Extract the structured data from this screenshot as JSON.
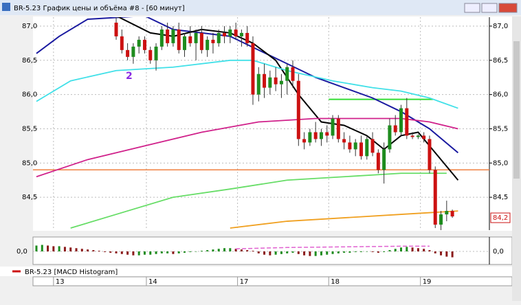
{
  "chart_data": {
    "type": "candlestick",
    "window_title": "BR-5.23 График цены и объёма #8 - [60 минут]",
    "xlim": [
      -14.6,
      65.5
    ],
    "ylim": [
      84.02,
      87.13
    ],
    "yticks": [
      {
        "value": 87.0,
        "label": "87,0"
      },
      {
        "value": 86.5,
        "label": "86,5"
      },
      {
        "value": 86.0,
        "label": "86,0"
      },
      {
        "value": 85.5,
        "label": "85,5"
      },
      {
        "value": 85.0,
        "label": "85,0"
      },
      {
        "value": 84.5,
        "label": "84,5"
      }
    ],
    "grid": true,
    "day_ticks": [
      {
        "value": -11,
        "label": "13"
      },
      {
        "value": 5.3,
        "label": "14"
      },
      {
        "value": 21.3,
        "label": "17"
      },
      {
        "value": 37.3,
        "label": "18"
      },
      {
        "value": 53.4,
        "label": "19"
      }
    ],
    "ohlc": [
      [
        87.05,
        87.15,
        86.8,
        86.85
      ],
      [
        86.85,
        86.95,
        86.6,
        86.65
      ],
      [
        86.65,
        86.75,
        86.5,
        86.55
      ],
      [
        86.55,
        86.75,
        86.45,
        86.7
      ],
      [
        86.7,
        86.85,
        86.6,
        86.8
      ],
      [
        86.8,
        86.85,
        86.6,
        86.65
      ],
      [
        86.65,
        86.7,
        86.45,
        86.5
      ],
      [
        86.5,
        86.75,
        86.35,
        86.7
      ],
      [
        86.7,
        87.0,
        86.65,
        86.95
      ],
      [
        86.95,
        87.05,
        86.7,
        86.75
      ],
      [
        86.75,
        87.0,
        86.7,
        86.95
      ],
      [
        86.95,
        87.05,
        86.6,
        86.65
      ],
      [
        86.65,
        86.9,
        86.55,
        86.85
      ],
      [
        86.85,
        87.0,
        86.7,
        86.75
      ],
      [
        86.75,
        86.95,
        86.5,
        86.9
      ],
      [
        86.9,
        87.0,
        86.6,
        86.65
      ],
      [
        86.65,
        86.85,
        86.55,
        86.8
      ],
      [
        86.8,
        86.9,
        86.6,
        86.75
      ],
      [
        86.75,
        86.95,
        86.7,
        86.9
      ],
      [
        86.9,
        87.0,
        86.75,
        86.85
      ],
      [
        86.85,
        87.0,
        86.75,
        86.95
      ],
      [
        86.95,
        87.05,
        86.8,
        86.85
      ],
      [
        86.85,
        86.95,
        86.7,
        86.9
      ],
      [
        86.9,
        87.0,
        86.7,
        86.75
      ],
      [
        86.75,
        86.85,
        85.85,
        86.0
      ],
      [
        86.0,
        86.4,
        85.9,
        86.3
      ],
      [
        86.3,
        86.45,
        85.95,
        86.1
      ],
      [
        86.1,
        86.35,
        86.0,
        86.25
      ],
      [
        86.25,
        86.4,
        86.05,
        86.15
      ],
      [
        86.15,
        86.3,
        85.95,
        86.2
      ],
      [
        86.2,
        86.45,
        86.0,
        86.4
      ],
      [
        86.4,
        86.5,
        86.1,
        86.2
      ],
      [
        86.2,
        86.3,
        85.25,
        85.35
      ],
      [
        85.35,
        85.45,
        85.2,
        85.3
      ],
      [
        85.3,
        85.5,
        85.25,
        85.45
      ],
      [
        85.45,
        85.6,
        85.3,
        85.35
      ],
      [
        85.35,
        85.5,
        85.25,
        85.45
      ],
      [
        85.45,
        85.55,
        85.3,
        85.4
      ],
      [
        85.4,
        85.7,
        85.35,
        85.65
      ],
      [
        85.65,
        85.7,
        85.3,
        85.35
      ],
      [
        85.35,
        85.45,
        85.2,
        85.3
      ],
      [
        85.3,
        85.4,
        85.15,
        85.2
      ],
      [
        85.2,
        85.35,
        85.1,
        85.3
      ],
      [
        85.3,
        85.4,
        85.05,
        85.1
      ],
      [
        85.1,
        85.4,
        85.05,
        85.35
      ],
      [
        85.35,
        85.45,
        85.1,
        85.15
      ],
      [
        85.15,
        85.2,
        84.85,
        84.9
      ],
      [
        84.9,
        85.3,
        84.7,
        85.2
      ],
      [
        85.2,
        85.65,
        85.15,
        85.55
      ],
      [
        85.55,
        85.7,
        85.4,
        85.45
      ],
      [
        85.45,
        85.85,
        85.4,
        85.8
      ],
      [
        85.8,
        85.95,
        85.35,
        85.4
      ],
      [
        85.4,
        85.45,
        85.35,
        85.38
      ],
      [
        85.38,
        85.42,
        85.35,
        85.4
      ],
      [
        85.4,
        85.45,
        85.3,
        85.35
      ],
      [
        85.35,
        85.4,
        84.85,
        84.9
      ],
      [
        84.9,
        84.95,
        84.05,
        84.1
      ],
      [
        84.1,
        84.3,
        84.0,
        84.25
      ],
      [
        84.25,
        84.45,
        84.15,
        84.3
      ],
      [
        84.3,
        84.32,
        84.2,
        84.22
      ]
    ],
    "up_color": "#1e8c1e",
    "down_color": "#cc1111",
    "lines": [
      {
        "color": "#1a1aa0",
        "x": [
          -14,
          -10,
          -5,
          5,
          10,
          15,
          20,
          25,
          30,
          35,
          40,
          45,
          50,
          55,
          60
        ],
        "values": [
          86.6,
          86.85,
          87.1,
          87.15,
          86.95,
          86.9,
          86.85,
          86.65,
          86.45,
          86.25,
          86.1,
          85.95,
          85.75,
          85.5,
          85.15
        ]
      },
      {
        "color": "#000000",
        "x": [
          0,
          6,
          10,
          15,
          20,
          24,
          28,
          32,
          36,
          40,
          44,
          47,
          50,
          53,
          56,
          60
        ],
        "values": [
          87.15,
          86.9,
          86.85,
          86.95,
          86.9,
          86.75,
          86.5,
          86.0,
          85.6,
          85.55,
          85.4,
          85.2,
          85.4,
          85.45,
          85.15,
          84.75
        ]
      },
      {
        "color": "#40e0e8",
        "x": [
          -14,
          -8,
          0,
          10,
          20,
          24,
          30,
          38,
          45,
          50,
          55,
          60
        ],
        "values": [
          85.9,
          86.2,
          86.35,
          86.4,
          86.5,
          86.5,
          86.35,
          86.2,
          86.1,
          86.05,
          85.95,
          85.8
        ]
      },
      {
        "color": "#d0208a",
        "x": [
          -14,
          -5,
          5,
          15,
          25,
          35,
          45,
          50,
          55,
          60
        ],
        "values": [
          84.8,
          85.05,
          85.25,
          85.45,
          85.6,
          85.65,
          85.65,
          85.65,
          85.6,
          85.5
        ]
      },
      {
        "color": "#66dd66",
        "x": [
          -8,
          0,
          10,
          20,
          30,
          40,
          50,
          58
        ],
        "values": [
          84.05,
          84.25,
          84.5,
          84.62,
          84.75,
          84.8,
          84.85,
          84.85
        ]
      },
      {
        "color": "#f0a020",
        "x": [
          20,
          30,
          40,
          50,
          60
        ],
        "values": [
          84.05,
          84.15,
          84.2,
          84.25,
          84.3
        ]
      }
    ],
    "levels": [
      {
        "value": 84.9,
        "color": "#f08040"
      },
      {
        "value": 85.93,
        "color": "#33dd33",
        "xrange": [
          37.3,
          55.6
        ]
      }
    ],
    "last_price": {
      "value": 84.2,
      "label": "84,2"
    },
    "wave_label": "2",
    "macd": {
      "name": "BR-5.23 [MACD Histogram]",
      "color": "#cc1111",
      "ylim": [
        -0.2,
        0.2
      ],
      "yticks": [
        {
          "value": 0.0,
          "label": "0,0"
        }
      ],
      "values": [
        0.09,
        0.1,
        0.09,
        0.08,
        0.08,
        0.07,
        0.06,
        0.05,
        0.04,
        0.03,
        0.02,
        0.01,
        -0.01,
        -0.02,
        -0.03,
        -0.04,
        -0.05,
        -0.06,
        -0.06,
        -0.05,
        -0.05,
        -0.04,
        -0.03,
        -0.03,
        -0.04,
        -0.03,
        -0.02,
        -0.01,
        0.0,
        0.01,
        0.02,
        0.03,
        0.04,
        0.05,
        0.05,
        0.04,
        0.03,
        0.02,
        0.01,
        -0.03,
        -0.05,
        -0.06,
        -0.05,
        -0.04,
        -0.03,
        -0.02,
        -0.04,
        -0.06,
        -0.07,
        -0.07,
        -0.06,
        -0.05,
        -0.04,
        -0.03,
        -0.02,
        -0.02,
        -0.01,
        -0.01,
        0.0,
        -0.01,
        -0.02,
        -0.01,
        0.02,
        0.04,
        0.06,
        0.07,
        0.06,
        0.05,
        0.04,
        0.02,
        -0.03,
        -0.06,
        -0.08,
        -0.09
      ],
      "signal": {
        "color": "#e060d0",
        "x": [
          21,
          30,
          40,
          50,
          55
        ],
        "values": [
          0.04,
          0.06,
          0.07,
          0.08,
          0.08
        ]
      }
    }
  }
}
